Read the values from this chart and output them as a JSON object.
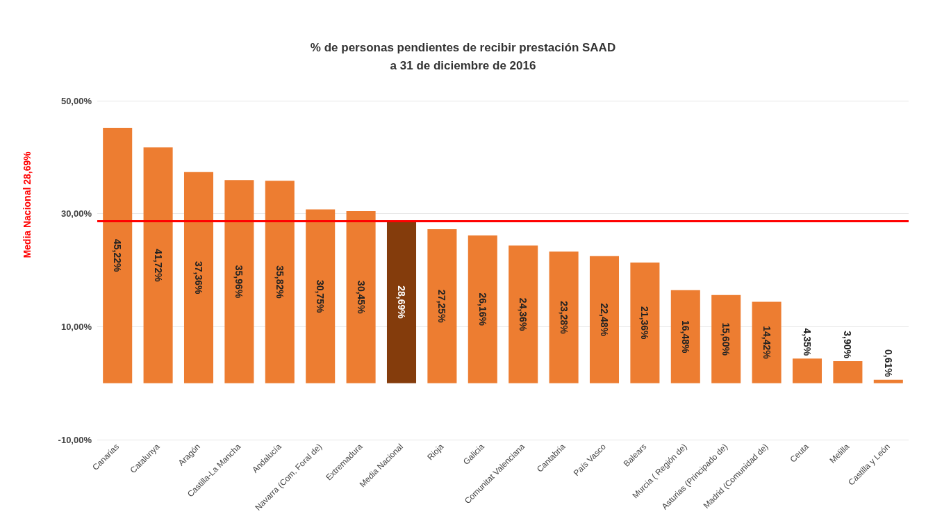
{
  "chart_data": {
    "type": "bar",
    "title": "% de personas pendientes de recibir prestación SAAD\na 31 de diciembre de 2016",
    "categories": [
      "Canarias",
      "Catalunya",
      "Aragón",
      "Castilla-La Mancha",
      "Andalucía",
      "Navarra (Com. Foral de)",
      "Extremadura",
      "Media Nacional",
      "Rioja",
      "Galicia",
      "Comunitat Valenciana",
      "Cantabria",
      "País Vasco",
      "Balears",
      "Murcia ( Región de)",
      "Asturias (Principado de)",
      "Madrid (Comunidad de)",
      "Ceuta",
      "Melilla",
      "Castilla y León"
    ],
    "values": [
      45.22,
      41.72,
      37.36,
      35.96,
      35.82,
      30.75,
      30.45,
      28.69,
      27.25,
      26.16,
      24.36,
      23.28,
      22.48,
      21.36,
      16.48,
      15.6,
      14.42,
      4.35,
      3.9,
      0.61
    ],
    "colors": [
      "#ed7d31",
      "#ed7d31",
      "#ed7d31",
      "#ed7d31",
      "#ed7d31",
      "#ed7d31",
      "#ed7d31",
      "#843c0c",
      "#ed7d31",
      "#ed7d31",
      "#ed7d31",
      "#ed7d31",
      "#ed7d31",
      "#ed7d31",
      "#ed7d31",
      "#ed7d31",
      "#ed7d31",
      "#ed7d31",
      "#ed7d31",
      "#ed7d31"
    ],
    "value_labels": [
      "45,22%",
      "41,72%",
      "37,36%",
      "35,96%",
      "35,82%",
      "30,75%",
      "30,45%",
      "28,69%",
      "27,25%",
      "26,16%",
      "24,36%",
      "23,28%",
      "22,48%",
      "21,36%",
      "16,48%",
      "15,60%",
      "14,42%",
      "4,35%",
      "3,90%",
      "0,61%"
    ],
    "ylim": [
      -10,
      50
    ],
    "yticks": [
      {
        "value": -10,
        "label": "-10,00%"
      },
      {
        "value": 10,
        "label": "10,00%"
      },
      {
        "value": 30,
        "label": "30,00%"
      },
      {
        "value": 50,
        "label": "50,00%"
      }
    ],
    "grid": true,
    "ref_lines": [
      {
        "axis": "y",
        "value": 28.69,
        "label": "Media Nacional 28,69%",
        "color": "#ff0000"
      }
    ]
  }
}
